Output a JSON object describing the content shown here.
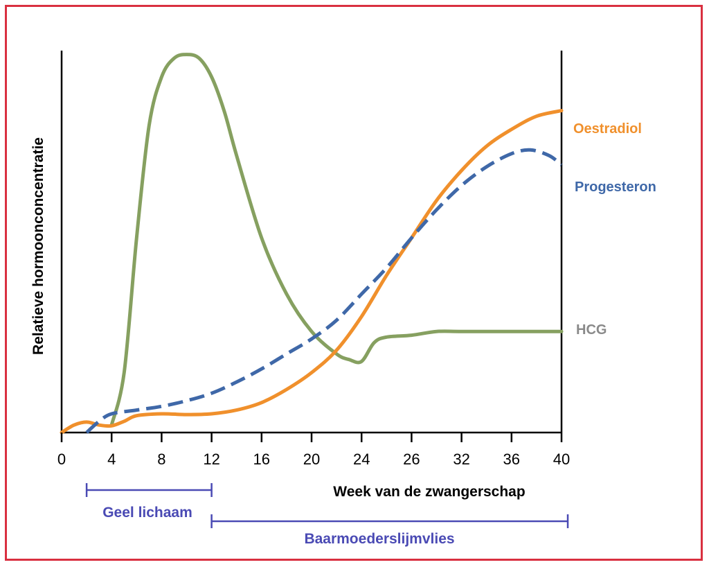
{
  "colors": {
    "frame": "#d93040",
    "axis": "#000000",
    "oestradiol": "#f0902c",
    "progesteron": "#3f68a8",
    "hcg": "#86a060",
    "hcg_label": "#8a8a8a",
    "phase": "#4a4ab4"
  },
  "chart_data": {
    "type": "line",
    "title": "",
    "xlabel": "Week van de zwangerschap",
    "ylabel": "Relatieve hormoonconcentratie",
    "x_ticks": [
      "0",
      "4",
      "8",
      "12",
      "16",
      "20",
      "24",
      "26",
      "32",
      "36",
      "40"
    ],
    "xlim": [
      0,
      40
    ],
    "ylim": [
      0,
      100
    ],
    "grid": false,
    "series": [
      {
        "name": "Oestradiol",
        "style": "solid",
        "color_key": "oestradiol",
        "points": [
          [
            0,
            0
          ],
          [
            1,
            2
          ],
          [
            2,
            2.8
          ],
          [
            3,
            2
          ],
          [
            4,
            1.8
          ],
          [
            5,
            3
          ],
          [
            6,
            4.5
          ],
          [
            8,
            5
          ],
          [
            10,
            4.8
          ],
          [
            12,
            5
          ],
          [
            14,
            6
          ],
          [
            16,
            8
          ],
          [
            18,
            11.5
          ],
          [
            20,
            16
          ],
          [
            22,
            22
          ],
          [
            24,
            31
          ],
          [
            26,
            42
          ],
          [
            28,
            52
          ],
          [
            30,
            62
          ],
          [
            32,
            70
          ],
          [
            34,
            76.5
          ],
          [
            36,
            81
          ],
          [
            38,
            84.5
          ],
          [
            40,
            86
          ]
        ]
      },
      {
        "name": "Progesteron",
        "style": "dashed",
        "color_key": "progesteron",
        "points": [
          [
            2,
            0
          ],
          [
            3,
            3
          ],
          [
            4,
            5
          ],
          [
            6,
            6
          ],
          [
            8,
            7
          ],
          [
            10,
            8.5
          ],
          [
            12,
            10.5
          ],
          [
            14,
            13.5
          ],
          [
            16,
            17
          ],
          [
            18,
            21
          ],
          [
            20,
            25
          ],
          [
            22,
            30
          ],
          [
            24,
            37
          ],
          [
            26,
            44
          ],
          [
            28,
            52
          ],
          [
            30,
            59.5
          ],
          [
            32,
            66
          ],
          [
            34,
            71
          ],
          [
            36,
            74.5
          ],
          [
            37.5,
            75.5
          ],
          [
            39,
            74
          ],
          [
            40,
            71.5
          ]
        ]
      },
      {
        "name": "HCG",
        "style": "solid",
        "color_key": "hcg",
        "points": [
          [
            4,
            2
          ],
          [
            5,
            16
          ],
          [
            6,
            52
          ],
          [
            7,
            82
          ],
          [
            8,
            95
          ],
          [
            9,
            100
          ],
          [
            10,
            101
          ],
          [
            11,
            100
          ],
          [
            12,
            95
          ],
          [
            13,
            86
          ],
          [
            14,
            74
          ],
          [
            16,
            52
          ],
          [
            18,
            37
          ],
          [
            20,
            27
          ],
          [
            22,
            21
          ],
          [
            23,
            19.5
          ],
          [
            24,
            19
          ],
          [
            25,
            24
          ],
          [
            26,
            25.5
          ],
          [
            28,
            26
          ],
          [
            30,
            27
          ],
          [
            32,
            27
          ],
          [
            36,
            27
          ],
          [
            40,
            27
          ]
        ]
      }
    ],
    "series_labels": {
      "oestradiol": "Oestradiol",
      "progesteron": "Progesteron",
      "hcg": "HCG"
    },
    "phases": [
      {
        "name": "Geel lichaam",
        "start_week": 2,
        "end_week": 12
      },
      {
        "name": "Baarmoederslijmvlies",
        "start_week": 12,
        "end_week": 40.5
      }
    ]
  }
}
